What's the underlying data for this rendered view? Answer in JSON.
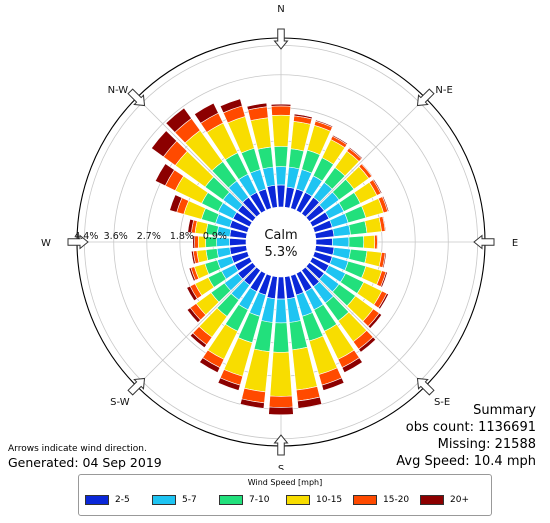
{
  "chart_data": {
    "type": "polar-stacked-bar",
    "directions": 36,
    "direction_labels": [
      "N",
      "N-E",
      "E",
      "S-E",
      "S",
      "S-W",
      "W",
      "N-W"
    ],
    "ring_labels": [
      "0.9%",
      "1.8%",
      "2.7%",
      "3.6%",
      "4.4%"
    ],
    "rlim": [
      0,
      4.6
    ],
    "calm_label": "Calm",
    "calm_value": "5.3%",
    "legend_title": "Wind Speed [mph]",
    "speed_bins": [
      "2-5",
      "5-7",
      "7-10",
      "10-15",
      "15-20",
      "20+"
    ],
    "colors": [
      "#0a27d8",
      "#1ec4f2",
      "#22e07c",
      "#f8dd00",
      "#ff4a00",
      "#8c0000"
    ],
    "bearings_deg": [
      0,
      10,
      20,
      30,
      40,
      50,
      60,
      70,
      80,
      90,
      100,
      110,
      120,
      130,
      140,
      150,
      160,
      170,
      180,
      190,
      200,
      210,
      220,
      230,
      240,
      250,
      260,
      270,
      280,
      290,
      300,
      310,
      320,
      330,
      340,
      350
    ],
    "freq_percent": [
      [
        0.6,
        0.5,
        0.55,
        0.85,
        0.25,
        0.05
      ],
      [
        0.55,
        0.55,
        0.5,
        0.75,
        0.15,
        0.05
      ],
      [
        0.55,
        0.55,
        0.55,
        0.7,
        0.12,
        0.03
      ],
      [
        0.55,
        0.5,
        0.55,
        0.55,
        0.1,
        0.03
      ],
      [
        0.55,
        0.5,
        0.5,
        0.55,
        0.1,
        0.03
      ],
      [
        0.5,
        0.5,
        0.5,
        0.5,
        0.1,
        0.02
      ],
      [
        0.5,
        0.45,
        0.5,
        0.5,
        0.12,
        0.03
      ],
      [
        0.5,
        0.45,
        0.5,
        0.5,
        0.12,
        0.03
      ],
      [
        0.5,
        0.45,
        0.45,
        0.4,
        0.1,
        0.02
      ],
      [
        0.45,
        0.45,
        0.4,
        0.3,
        0.07,
        0.02
      ],
      [
        0.5,
        0.45,
        0.45,
        0.4,
        0.1,
        0.03
      ],
      [
        0.5,
        0.45,
        0.5,
        0.45,
        0.12,
        0.04
      ],
      [
        0.5,
        0.5,
        0.55,
        0.55,
        0.15,
        0.05
      ],
      [
        0.5,
        0.5,
        0.55,
        0.6,
        0.2,
        0.08
      ],
      [
        0.55,
        0.55,
        0.6,
        0.7,
        0.25,
        0.1
      ],
      [
        0.55,
        0.55,
        0.65,
        0.85,
        0.25,
        0.15
      ],
      [
        0.55,
        0.6,
        0.7,
        0.95,
        0.3,
        0.15
      ],
      [
        0.6,
        0.65,
        0.75,
        1.1,
        0.3,
        0.2
      ],
      [
        0.6,
        0.65,
        0.8,
        1.2,
        0.3,
        0.2
      ],
      [
        0.6,
        0.65,
        0.8,
        1.1,
        0.3,
        0.15
      ],
      [
        0.55,
        0.6,
        0.75,
        0.95,
        0.25,
        0.15
      ],
      [
        0.55,
        0.55,
        0.65,
        0.85,
        0.25,
        0.15
      ],
      [
        0.5,
        0.5,
        0.55,
        0.7,
        0.25,
        0.1
      ],
      [
        0.5,
        0.45,
        0.45,
        0.5,
        0.2,
        0.1
      ],
      [
        0.45,
        0.4,
        0.4,
        0.4,
        0.15,
        0.1
      ],
      [
        0.45,
        0.4,
        0.35,
        0.3,
        0.1,
        0.05
      ],
      [
        0.45,
        0.35,
        0.3,
        0.25,
        0.1,
        0.05
      ],
      [
        0.45,
        0.35,
        0.3,
        0.2,
        0.1,
        0.05
      ],
      [
        0.45,
        0.35,
        0.3,
        0.3,
        0.1,
        0.1
      ],
      [
        0.5,
        0.4,
        0.4,
        0.5,
        0.2,
        0.2
      ],
      [
        0.5,
        0.45,
        0.5,
        0.8,
        0.3,
        0.3
      ],
      [
        0.5,
        0.5,
        0.6,
        1.0,
        0.4,
        0.4
      ],
      [
        0.55,
        0.55,
        0.65,
        1.05,
        0.4,
        0.35
      ],
      [
        0.55,
        0.55,
        0.65,
        0.9,
        0.3,
        0.3
      ],
      [
        0.55,
        0.55,
        0.6,
        0.9,
        0.3,
        0.2
      ],
      [
        0.6,
        0.5,
        0.55,
        0.8,
        0.3,
        0.1
      ]
    ]
  },
  "summary": {
    "title": "Summary",
    "obs_count": "obs count: 1136691",
    "missing": "Missing: 21588",
    "avg_speed": "Avg Speed: 10.4 mph"
  },
  "footnote": {
    "arrows_note": "Arrows indicate wind direction.",
    "generated": "Generated: 04 Sep 2019"
  }
}
